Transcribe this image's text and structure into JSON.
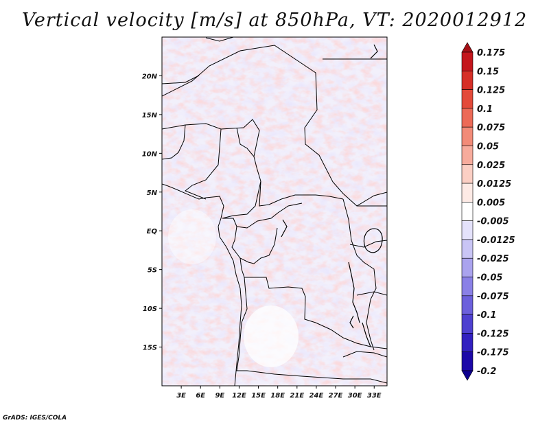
{
  "title": "Vertical velocity [m/s] at 850hPa, VT: 2020012912",
  "credit": "GrADS: IGES/COLA",
  "map": {
    "lon_range": [
      0,
      35
    ],
    "lat_range": [
      -20,
      25
    ],
    "lat_ticks": [
      "20N",
      "15N",
      "10N",
      "5N",
      "EQ",
      "5S",
      "10S",
      "15S"
    ],
    "lat_values": [
      20,
      15,
      10,
      5,
      0,
      -5,
      -10,
      -15
    ],
    "lon_ticks": [
      "3E",
      "6E",
      "9E",
      "12E",
      "15E",
      "18E",
      "21E",
      "24E",
      "27E",
      "30E",
      "33E"
    ],
    "lon_values": [
      3,
      6,
      9,
      12,
      15,
      18,
      21,
      24,
      27,
      30,
      33
    ]
  },
  "colorbar": {
    "labels": [
      "0.175",
      "0.15",
      "0.125",
      "0.1",
      "0.075",
      "0.05",
      "0.025",
      "0.0125",
      "0.005",
      "-0.005",
      "-0.0125",
      "-0.025",
      "-0.05",
      "-0.075",
      "-0.1",
      "-0.125",
      "-0.175",
      "-0.2"
    ],
    "colors": [
      "#a50f15",
      "#c4161c",
      "#d62f27",
      "#e34a3a",
      "#ec6a57",
      "#f28b78",
      "#f7ab9c",
      "#fbcfc4",
      "#fdeae5",
      "#ffffff",
      "#e4e2fb",
      "#c9c5f5",
      "#aaa3ee",
      "#8a80e6",
      "#6c60dc",
      "#4e40d0",
      "#3220c0",
      "#1c08a8",
      "#0e0090"
    ]
  }
}
